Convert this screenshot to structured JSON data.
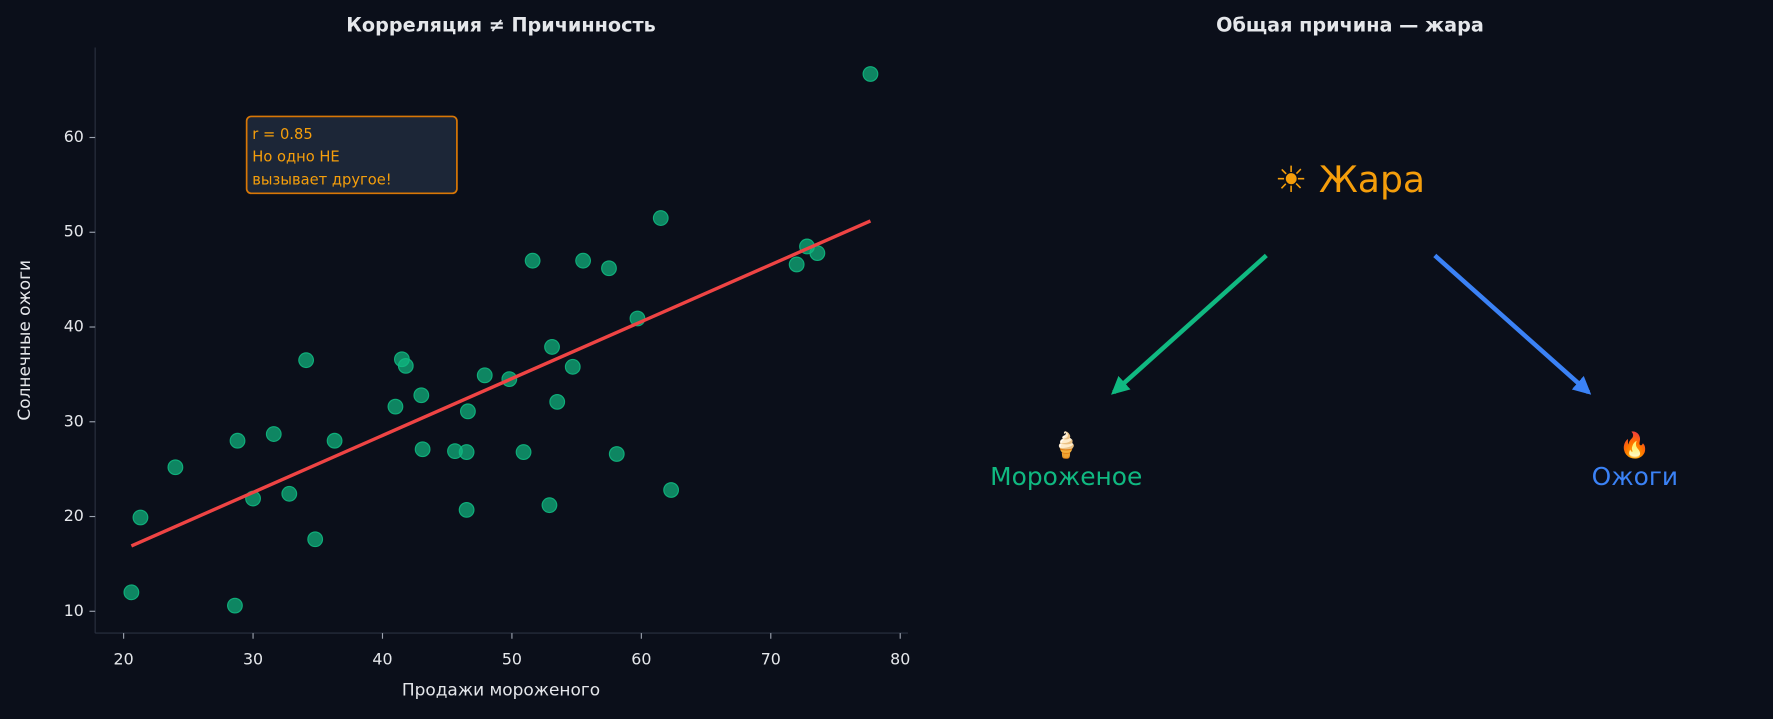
{
  "chart_data": {
    "type": "scatter",
    "title": "Корреляция ≠ Причинность",
    "xlabel": "Продажи мороженого",
    "ylabel": "Солнечные ожоги",
    "x": [
      20.6,
      21.3,
      24.0,
      28.6,
      28.8,
      30.0,
      31.6,
      32.8,
      34.1,
      34.8,
      36.3,
      41.0,
      41.5,
      41.8,
      43.0,
      43.1,
      45.6,
      46.5,
      46.6,
      46.5,
      47.9,
      49.8,
      50.9,
      51.6,
      52.9,
      53.1,
      53.5,
      54.7,
      55.5,
      57.5,
      58.1,
      59.7,
      61.5,
      62.3,
      72.0,
      72.8,
      73.6,
      77.7
    ],
    "values": [
      12.0,
      19.9,
      25.2,
      10.6,
      28.0,
      21.9,
      28.7,
      22.4,
      36.5,
      17.6,
      28.0,
      31.6,
      36.6,
      35.9,
      32.8,
      27.1,
      26.9,
      26.8,
      31.1,
      20.7,
      34.9,
      34.5,
      26.8,
      47.0,
      21.2,
      37.9,
      32.1,
      35.8,
      47.0,
      46.2,
      26.6,
      40.9,
      51.5,
      22.8,
      46.6,
      48.5,
      47.8,
      66.7
    ],
    "color": "#10b981",
    "fit": {
      "color": "#ef4444",
      "x": [
        20.6,
        77.7
      ],
      "values": [
        16.9,
        51.2
      ]
    },
    "annotation": [
      "r = 0.85",
      "Но одно НЕ",
      "вызывает другое!"
    ],
    "xlim": [
      17.8,
      80.6
    ],
    "ylim": [
      7.7,
      69.5
    ],
    "xticks": [
      20,
      30,
      40,
      50,
      60,
      70,
      80
    ],
    "yticks": [
      10,
      20,
      30,
      40,
      50,
      60
    ]
  },
  "diagram": {
    "title": "Общая причина — жара",
    "nodes": [
      {
        "label": "☀ Жара"
      },
      {
        "icon": "🍦",
        "label": "Мороженое"
      },
      {
        "icon": "🔥",
        "label": "Ожоги"
      }
    ]
  }
}
